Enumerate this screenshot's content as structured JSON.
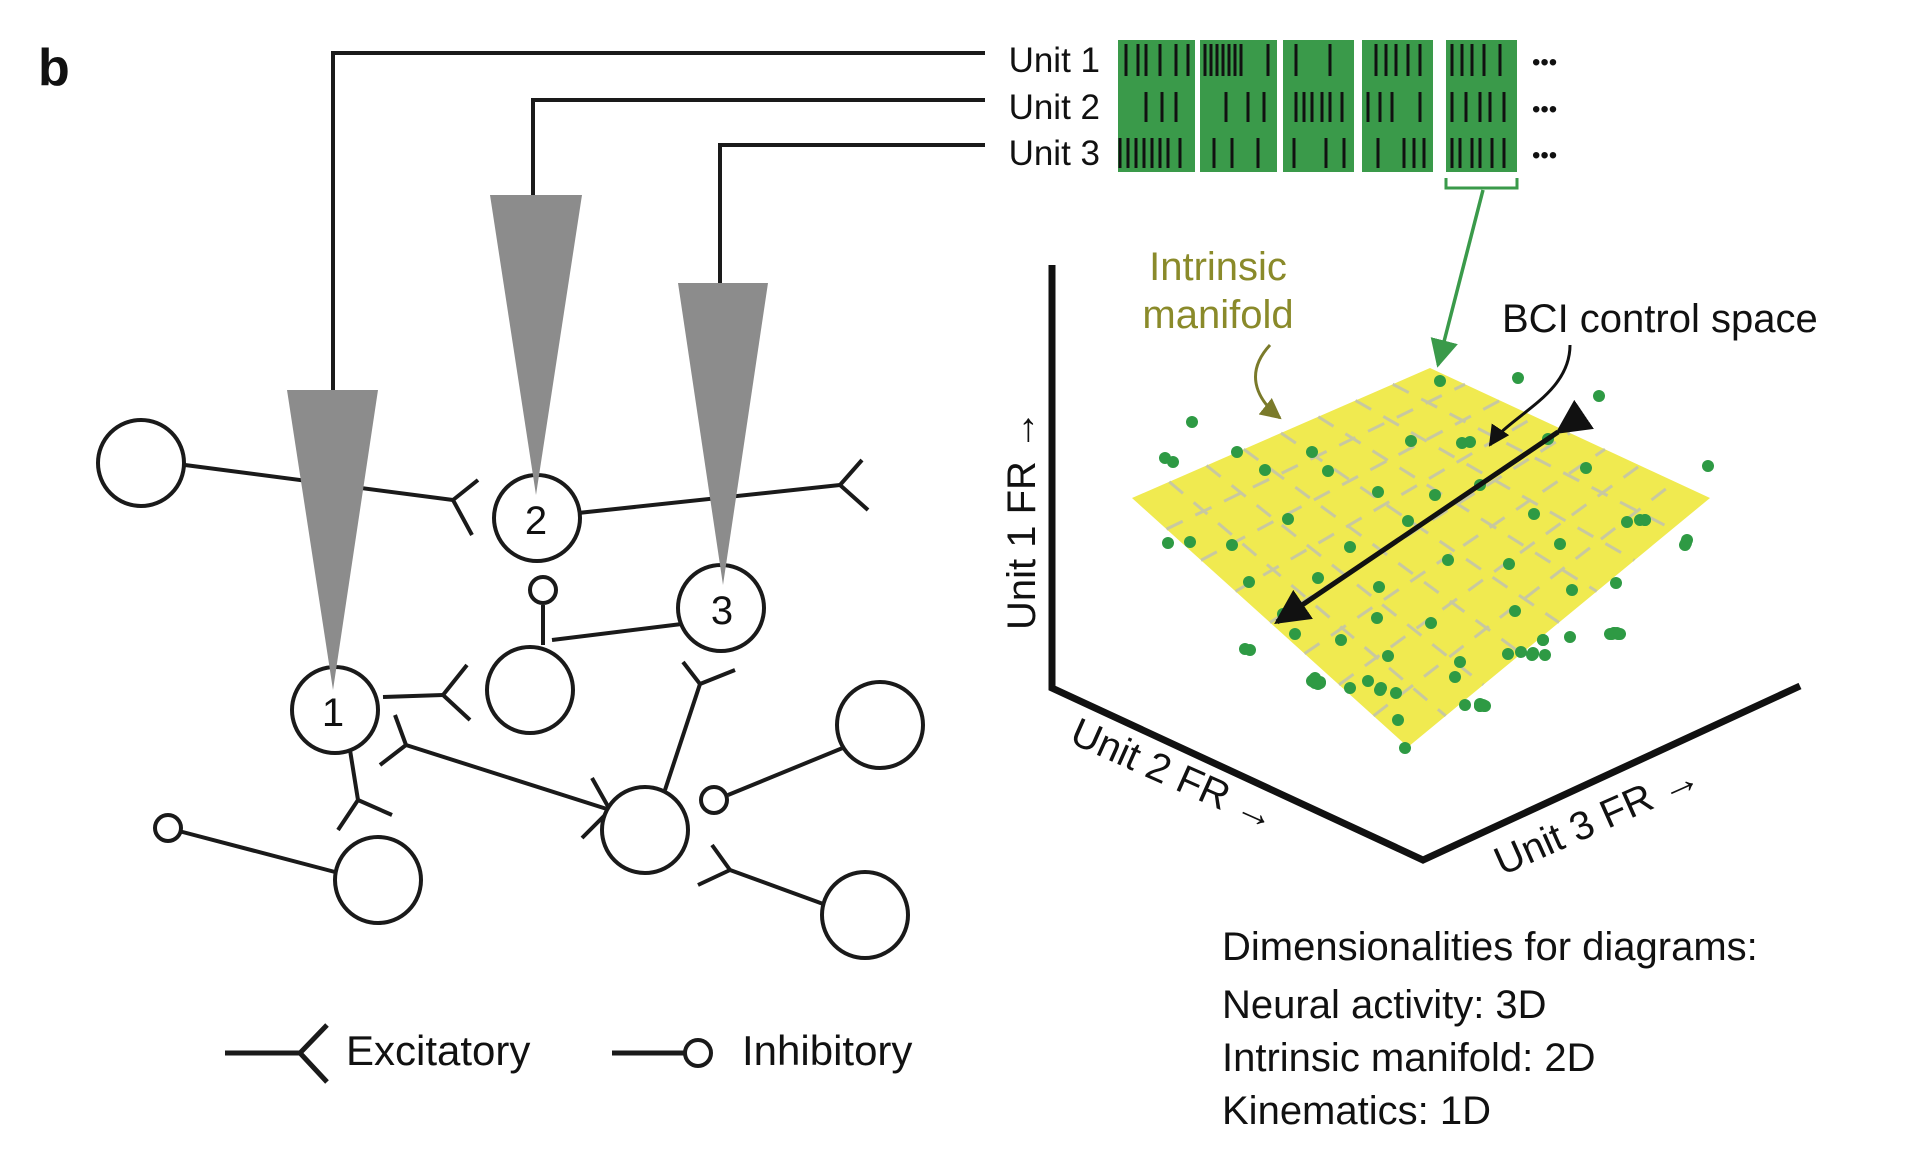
{
  "panel_label": "b",
  "units": [
    {
      "label": "Unit 1"
    },
    {
      "label": "Unit 2"
    },
    {
      "label": "Unit 3"
    }
  ],
  "ellipsis": "•••",
  "neurons": {
    "unit1": "1",
    "unit2": "2",
    "unit3": "3"
  },
  "legend": {
    "excitatory": "Excitatory",
    "inhibitory": "Inhibitory"
  },
  "plot": {
    "y_axis": "Unit 1 FR →",
    "x_axis": "Unit 2 FR →",
    "z_axis": "Unit 3 FR →",
    "manifold_label_line1": "Intrinsic",
    "manifold_label_line2": "manifold",
    "control_label": "BCI control space"
  },
  "dimensionalities": {
    "heading": "Dimensionalities for diagrams:",
    "items": [
      "Neural activity: 3D",
      "Intrinsic manifold: 2D",
      "Kinematics: 1D"
    ]
  },
  "colors": {
    "raster_green": "#3a9a4a",
    "dot_green": "#2e9a44",
    "manifold_yellow": "#f0ea50",
    "manifold_label": "#8a8a2a",
    "electrode_gray": "#8c8c8c",
    "line": "#1a1a1a"
  }
}
